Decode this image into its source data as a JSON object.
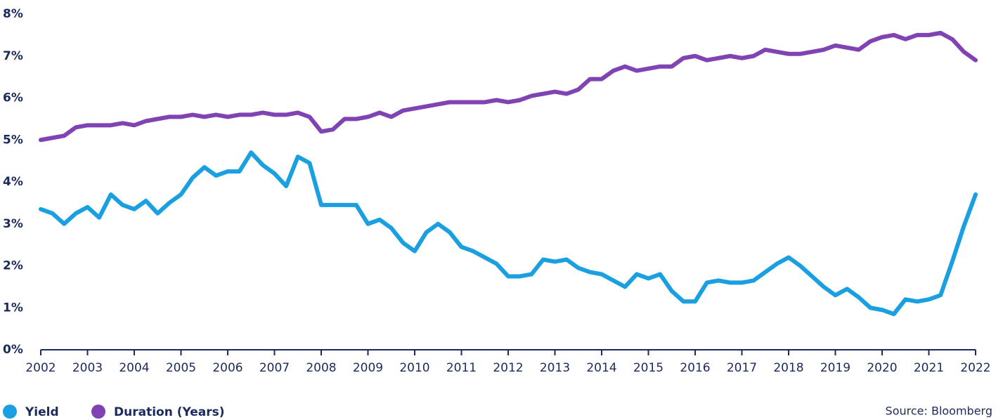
{
  "chart_data": {
    "type": "line",
    "x": [
      2002,
      2002.25,
      2002.5,
      2002.75,
      2003,
      2003.25,
      2003.5,
      2003.75,
      2004,
      2004.25,
      2004.5,
      2004.75,
      2005,
      2005.25,
      2005.5,
      2005.75,
      2006,
      2006.25,
      2006.5,
      2006.75,
      2007,
      2007.25,
      2007.5,
      2007.75,
      2008,
      2008.25,
      2008.5,
      2008.75,
      2009,
      2009.25,
      2009.5,
      2009.75,
      2010,
      2010.25,
      2010.5,
      2010.75,
      2011,
      2011.25,
      2011.5,
      2011.75,
      2012,
      2012.25,
      2012.5,
      2012.75,
      2013,
      2013.25,
      2013.5,
      2013.75,
      2014,
      2014.25,
      2014.5,
      2014.75,
      2015,
      2015.25,
      2015.5,
      2015.75,
      2016,
      2016.25,
      2016.5,
      2016.75,
      2017,
      2017.25,
      2017.5,
      2017.75,
      2018,
      2018.25,
      2018.5,
      2018.75,
      2019,
      2019.25,
      2019.5,
      2019.75,
      2020,
      2020.25,
      2020.5,
      2020.75,
      2021,
      2021.25,
      2021.5,
      2021.75,
      2022
    ],
    "series": [
      {
        "name": "Yield",
        "color": "#1aa0e0",
        "values": [
          3.35,
          3.25,
          3.0,
          3.25,
          3.4,
          3.15,
          3.7,
          3.45,
          3.35,
          3.55,
          3.25,
          3.5,
          3.7,
          4.1,
          4.35,
          4.15,
          4.25,
          4.25,
          4.7,
          4.4,
          4.2,
          3.9,
          4.6,
          4.45,
          3.45,
          3.45,
          3.45,
          3.45,
          3.0,
          3.1,
          2.9,
          2.55,
          2.35,
          2.8,
          3.0,
          2.8,
          2.45,
          2.35,
          2.2,
          2.05,
          1.75,
          1.75,
          1.8,
          2.15,
          2.1,
          2.15,
          1.95,
          1.85,
          1.8,
          1.65,
          1.5,
          1.8,
          1.7,
          1.8,
          1.4,
          1.15,
          1.15,
          1.6,
          1.65,
          1.6,
          1.6,
          1.65,
          1.85,
          2.05,
          2.2,
          2.0,
          1.75,
          1.5,
          1.3,
          1.45,
          1.25,
          1.0,
          0.95,
          0.85,
          1.2,
          1.15,
          1.2,
          1.3,
          2.1,
          2.95,
          3.7
        ]
      },
      {
        "name": "Duration (Years)",
        "color": "#8043b3",
        "values": [
          5.0,
          5.05,
          5.1,
          5.3,
          5.35,
          5.35,
          5.35,
          5.4,
          5.35,
          5.45,
          5.5,
          5.55,
          5.55,
          5.6,
          5.55,
          5.6,
          5.55,
          5.6,
          5.6,
          5.65,
          5.6,
          5.6,
          5.65,
          5.55,
          5.2,
          5.25,
          5.5,
          5.5,
          5.55,
          5.65,
          5.55,
          5.7,
          5.75,
          5.8,
          5.85,
          5.9,
          5.9,
          5.9,
          5.9,
          5.95,
          5.9,
          5.95,
          6.05,
          6.1,
          6.15,
          6.1,
          6.2,
          6.45,
          6.45,
          6.65,
          6.75,
          6.65,
          6.7,
          6.75,
          6.75,
          6.95,
          7.0,
          6.9,
          6.95,
          7.0,
          6.95,
          7.0,
          7.15,
          7.1,
          7.05,
          7.05,
          7.1,
          7.15,
          7.25,
          7.2,
          7.15,
          7.35,
          7.45,
          7.5,
          7.4,
          7.5,
          7.5,
          7.55,
          7.4,
          7.1,
          6.9
        ]
      }
    ],
    "xlim": [
      2002,
      2022
    ],
    "xticks": [
      2002,
      2003,
      2004,
      2005,
      2006,
      2007,
      2008,
      2009,
      2010,
      2011,
      2012,
      2013,
      2014,
      2015,
      2016,
      2017,
      2018,
      2019,
      2020,
      2021,
      2022
    ],
    "ylim": [
      0,
      8
    ],
    "yticks": [
      {
        "value": 0,
        "label": "0%"
      },
      {
        "value": 1,
        "label": "1%"
      },
      {
        "value": 2,
        "label": "2%"
      },
      {
        "value": 3,
        "label": "3%"
      },
      {
        "value": 4,
        "label": "4%"
      },
      {
        "value": 5,
        "label": "5%"
      },
      {
        "value": 6,
        "label": "6%"
      },
      {
        "value": 7,
        "label": "7%"
      },
      {
        "value": 8,
        "label": "8%"
      }
    ],
    "grid": false,
    "source": "Source:  Bloomberg"
  }
}
